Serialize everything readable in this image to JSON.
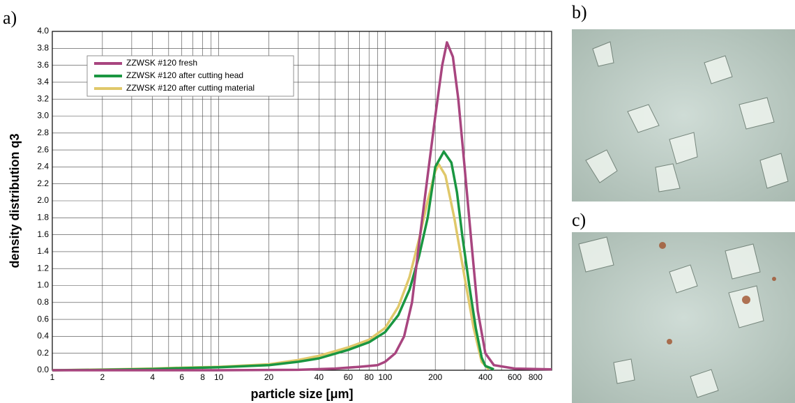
{
  "panel_labels": {
    "a": "a)",
    "b": "b)",
    "c": "c)"
  },
  "chart_data": {
    "type": "line",
    "xlabel": "particle size  [μm]",
    "ylabel": "density   distribution q3",
    "xscale": "log",
    "xlim": [
      1,
      1000
    ],
    "ylim": [
      0,
      4.0
    ],
    "xticks": [
      1,
      2,
      4,
      6,
      8,
      10,
      20,
      40,
      60,
      80,
      100,
      200,
      400,
      600,
      800
    ],
    "minor_xticks": [
      3,
      5,
      7,
      9,
      30,
      50,
      70,
      90,
      300,
      500,
      700,
      900
    ],
    "yticks": [
      {
        "value": 0,
        "label": "0.0"
      },
      {
        "value": 0.2,
        "label": "0.2"
      },
      {
        "value": 0.4,
        "label": "0.4"
      },
      {
        "value": 0.6,
        "label": "0.6"
      },
      {
        "value": 0.8,
        "label": "0.8"
      },
      {
        "value": 1,
        "label": "1.0"
      },
      {
        "value": 1.2,
        "label": "1.2"
      },
      {
        "value": 1.4,
        "label": "1.4"
      },
      {
        "value": 1.6,
        "label": "1.6"
      },
      {
        "value": 1.8,
        "label": "1.8"
      },
      {
        "value": 2,
        "label": "2.0"
      },
      {
        "value": 2.2,
        "label": "2.2"
      },
      {
        "value": 2.4,
        "label": "2.4"
      },
      {
        "value": 2.6,
        "label": "2.6"
      },
      {
        "value": 2.8,
        "label": "2.8"
      },
      {
        "value": 3,
        "label": "3.0"
      },
      {
        "value": 3.2,
        "label": "3.2"
      },
      {
        "value": 3.4,
        "label": "3.4"
      },
      {
        "value": 3.6,
        "label": "3.6"
      },
      {
        "value": 3.8,
        "label": "3.8"
      },
      {
        "value": 4,
        "label": "4.0"
      }
    ],
    "grid": true,
    "legend": "upper left",
    "series": [
      {
        "name": "ZZWSK #120 fresh",
        "color": "#a8457f",
        "x": [
          1,
          10,
          30,
          50,
          70,
          90,
          100,
          115,
          130,
          145,
          160,
          180,
          200,
          220,
          235,
          255,
          275,
          300,
          330,
          360,
          400,
          450,
          600,
          1000
        ],
        "values": [
          0,
          0,
          0.005,
          0.02,
          0.04,
          0.06,
          0.1,
          0.2,
          0.4,
          0.8,
          1.5,
          2.3,
          3.0,
          3.6,
          3.87,
          3.7,
          3.2,
          2.4,
          1.5,
          0.7,
          0.2,
          0.06,
          0.02,
          0.01
        ]
      },
      {
        "name": "ZZWSK #120 after cutting head",
        "color": "#1a9641",
        "x": [
          1,
          2,
          4,
          6,
          10,
          20,
          30,
          40,
          60,
          80,
          100,
          120,
          140,
          160,
          180,
          200,
          225,
          250,
          270,
          290,
          320,
          350,
          380,
          400,
          450
        ],
        "values": [
          0,
          0.005,
          0.015,
          0.025,
          0.035,
          0.06,
          0.1,
          0.14,
          0.24,
          0.33,
          0.45,
          0.65,
          0.95,
          1.35,
          1.8,
          2.4,
          2.58,
          2.45,
          2.1,
          1.6,
          1.0,
          0.5,
          0.15,
          0.05,
          0.01
        ]
      },
      {
        "name": "ZZWSK #120 after cutting material",
        "color": "#e0c86a",
        "x": [
          1,
          2,
          4,
          6,
          10,
          20,
          30,
          40,
          60,
          80,
          100,
          120,
          140,
          160,
          180,
          200,
          210,
          230,
          260,
          300,
          340,
          380,
          420
        ],
        "values": [
          0,
          0.008,
          0.02,
          0.03,
          0.04,
          0.07,
          0.12,
          0.17,
          0.27,
          0.36,
          0.5,
          0.75,
          1.1,
          1.55,
          2.0,
          2.35,
          2.43,
          2.3,
          1.8,
          1.1,
          0.5,
          0.1,
          0.01
        ]
      }
    ]
  }
}
